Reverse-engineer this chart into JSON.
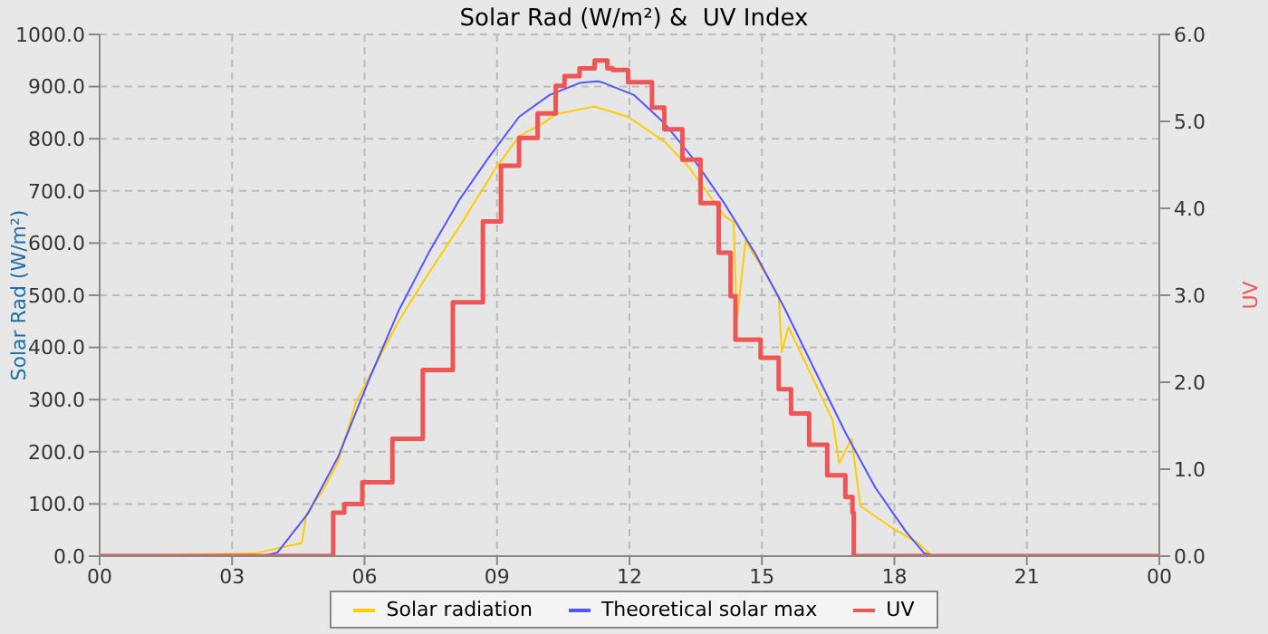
{
  "chart_data": {
    "type": "line",
    "title": "Solar Rad (W/m²) &  UV Index",
    "ylabel": "Solar Rad (W/m²)",
    "y2label": "UV",
    "xlim": [
      0,
      24
    ],
    "xticks": [
      {
        "value": 0,
        "label": "00"
      },
      {
        "value": 3,
        "label": "03"
      },
      {
        "value": 6,
        "label": "06"
      },
      {
        "value": 9,
        "label": "09"
      },
      {
        "value": 12,
        "label": "12"
      },
      {
        "value": 15,
        "label": "15"
      },
      {
        "value": 18,
        "label": "18"
      },
      {
        "value": 21,
        "label": "21"
      },
      {
        "value": 24,
        "label": "00"
      }
    ],
    "ylim": [
      0,
      1000
    ],
    "yticks": [
      {
        "value": 0,
        "label": "0.0"
      },
      {
        "value": 100,
        "label": "100.0"
      },
      {
        "value": 200,
        "label": "200.0"
      },
      {
        "value": 300,
        "label": "300.0"
      },
      {
        "value": 400,
        "label": "400.0"
      },
      {
        "value": 500,
        "label": "500.0"
      },
      {
        "value": 600,
        "label": "600.0"
      },
      {
        "value": 700,
        "label": "700.0"
      },
      {
        "value": 800,
        "label": "800.0"
      },
      {
        "value": 900,
        "label": "900.0"
      },
      {
        "value": 1000,
        "label": "1000.0"
      }
    ],
    "y2lim": [
      0,
      6
    ],
    "y2ticks": [
      {
        "value": 0,
        "label": "0.0"
      },
      {
        "value": 1,
        "label": "1.0"
      },
      {
        "value": 2,
        "label": "2.0"
      },
      {
        "value": 3,
        "label": "3.0"
      },
      {
        "value": 4,
        "label": "4.0"
      },
      {
        "value": 5,
        "label": "5.0"
      },
      {
        "value": 6,
        "label": "6.0"
      }
    ],
    "grid": true,
    "legend": "bottom",
    "marker": "none",
    "line_style": "solid",
    "series": [
      {
        "name": "Solar radiation",
        "color": "#ffcc00",
        "x": [
          0,
          3.5,
          4.58,
          4.68,
          5.05,
          5.4,
          5.81,
          6.77,
          7.38,
          8.13,
          8.95,
          9.5,
          10.05,
          10.33,
          11.2,
          11.97,
          12.79,
          13.33,
          14.15,
          14.36,
          14.43,
          14.63,
          15.38,
          15.45,
          15.6,
          16.6,
          16.75,
          17.03,
          17.23,
          17.97,
          18.53,
          18.87,
          24
        ],
        "values": [
          0,
          5,
          25,
          80,
          125,
          180,
          296,
          450,
          533,
          629,
          741,
          805,
          830,
          847,
          862,
          842,
          795,
          747,
          652,
          640,
          451,
          605,
          498,
          391,
          439,
          261,
          178,
          225,
          96,
          53,
          25,
          0,
          0
        ]
      },
      {
        "name": "Theoretical solar max",
        "color": "#5555ff",
        "x": [
          0,
          3.7,
          4.03,
          4.72,
          5.4,
          6.07,
          6.77,
          7.45,
          8.14,
          8.82,
          9.5,
          10.19,
          10.87,
          11.28,
          11.42,
          12.1,
          12.79,
          13.47,
          14.15,
          14.84,
          15.52,
          16.2,
          16.89,
          17.57,
          18.26,
          18.67,
          18.9,
          24
        ],
        "values": [
          0,
          0,
          7,
          82,
          190,
          332,
          470,
          581,
          682,
          765,
          842,
          884,
          907,
          910,
          907,
          884,
          830,
          759,
          676,
          581,
          474,
          356,
          237,
          131,
          47,
          6,
          0,
          0
        ]
      },
      {
        "name": "UV",
        "color": "#ee5555",
        "type": "step",
        "axis": "y2",
        "x": [
          0,
          5.29,
          5.54,
          5.95,
          6.63,
          7.32,
          8.0,
          8.68,
          9.09,
          9.5,
          9.92,
          10.33,
          10.53,
          10.87,
          11.21,
          11.5,
          11.62,
          11.97,
          12.51,
          12.79,
          13.2,
          13.61,
          14.02,
          14.29,
          14.4,
          14.7,
          14.97,
          15.38,
          15.66,
          16.07,
          16.48,
          16.89,
          17.05,
          17.08,
          24
        ],
        "values": [
          0,
          0.5,
          0.6,
          0.85,
          1.35,
          2.14,
          2.92,
          3.85,
          4.49,
          4.81,
          5.09,
          5.41,
          5.52,
          5.61,
          5.7,
          5.61,
          5.59,
          5.45,
          5.16,
          4.91,
          4.56,
          4.06,
          3.49,
          2.99,
          2.49,
          2.49,
          2.28,
          1.92,
          1.64,
          1.28,
          0.93,
          0.68,
          0.5,
          0,
          0
        ]
      }
    ]
  }
}
